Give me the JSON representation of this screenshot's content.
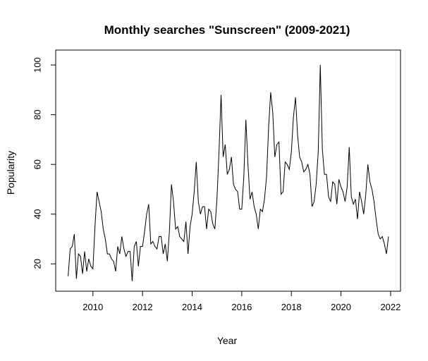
{
  "chart_data": {
    "type": "line",
    "title": "Monthly searches \"Sunscreen\" (2009-2021)",
    "xlabel": "Year",
    "ylabel": "Popularity",
    "xlim": [
      2008.5,
      2022.4
    ],
    "ylim": [
      9,
      106
    ],
    "x_ticks": [
      2010,
      2012,
      2014,
      2016,
      2018,
      2020,
      2022
    ],
    "y_ticks": [
      20,
      40,
      60,
      80,
      100
    ],
    "grid": false,
    "legend": "none",
    "line_color": "#000000",
    "series": [
      {
        "start_year": 2009,
        "values": [
          15,
          26,
          27,
          32,
          14,
          24,
          23,
          16,
          25,
          17,
          22,
          19,
          18,
          35,
          49,
          45,
          41,
          34,
          30,
          24,
          24,
          22,
          21,
          17,
          27,
          24,
          31,
          26,
          23,
          25,
          25,
          13,
          27,
          29,
          19,
          27,
          27,
          33,
          40,
          44,
          28,
          29,
          27,
          26,
          31,
          31,
          24,
          28,
          21,
          33,
          52,
          45,
          34,
          35,
          31,
          30,
          29,
          37,
          24,
          35,
          40,
          49,
          61,
          45,
          40,
          43,
          43,
          34,
          42,
          41,
          36,
          34,
          46,
          65,
          88,
          63,
          68,
          56,
          58,
          63,
          52,
          50,
          49,
          42,
          42,
          55,
          78,
          60,
          46,
          49,
          43,
          40,
          34,
          42,
          41,
          46,
          55,
          75,
          89,
          81,
          63,
          68,
          69,
          48,
          49,
          61,
          60,
          58,
          65,
          79,
          87,
          72,
          63,
          61,
          57,
          58,
          60,
          56,
          43,
          45,
          52,
          65,
          100,
          66,
          56,
          56,
          47,
          45,
          53,
          52,
          44,
          54,
          51,
          49,
          45,
          51,
          67,
          47,
          44,
          46,
          38,
          49,
          45,
          40,
          48,
          60,
          53,
          50,
          45,
          38,
          32,
          30,
          31,
          28,
          24,
          31
        ]
      }
    ]
  }
}
